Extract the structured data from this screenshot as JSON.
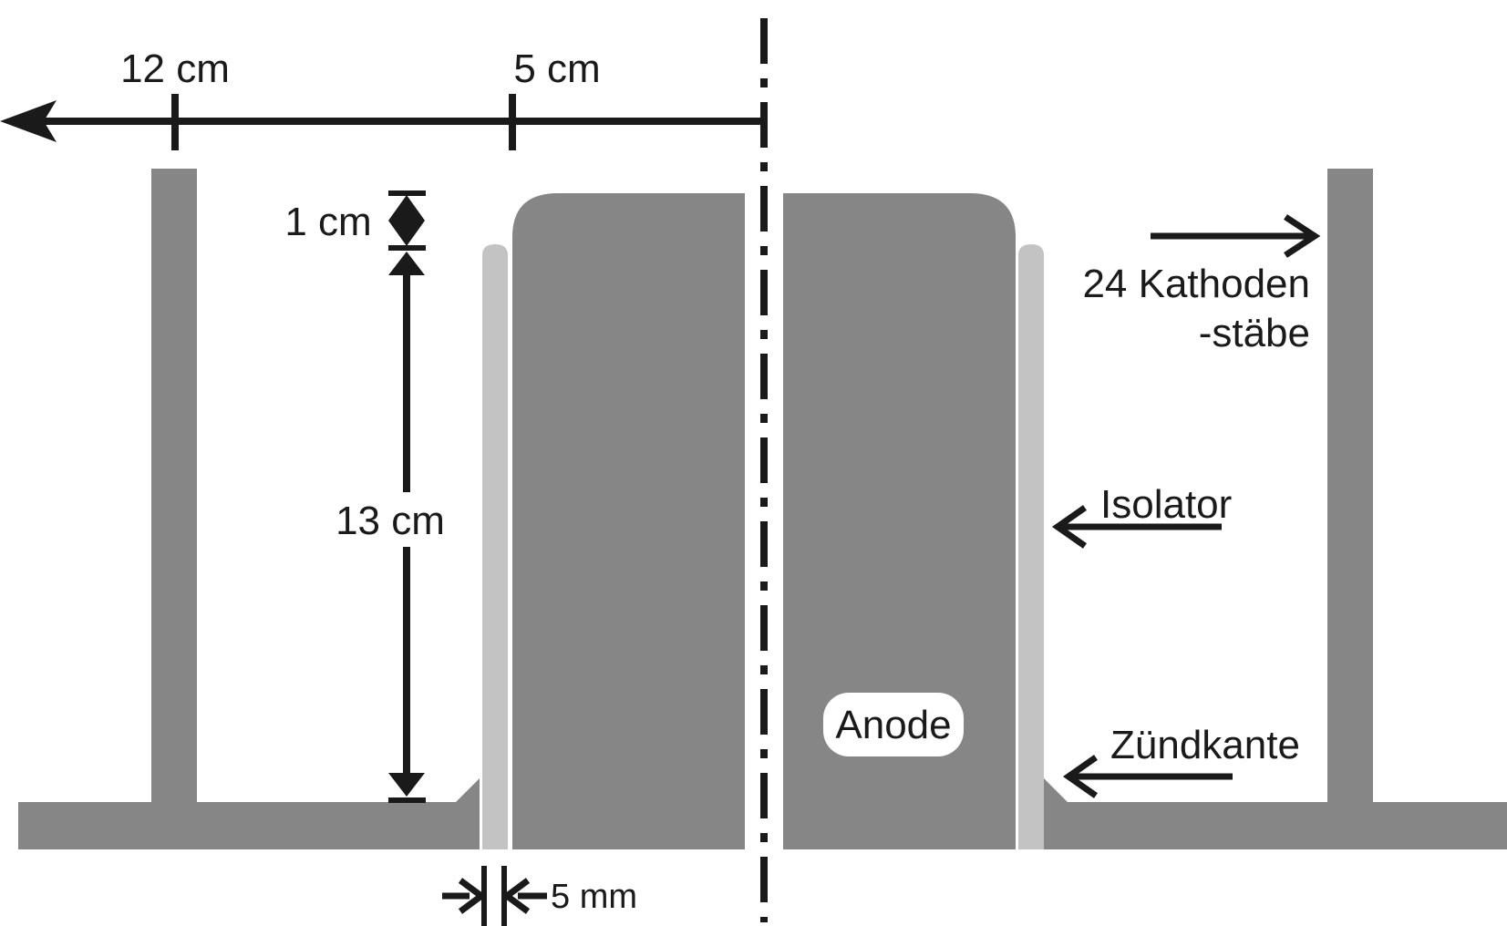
{
  "labels": {
    "dim_12cm": "12 cm",
    "dim_5cm": "5 cm",
    "dim_1cm": "1 cm",
    "dim_13cm": "13 cm",
    "dim_5mm": "5 mm",
    "cathode_line1": "24 Kathoden",
    "cathode_line2": "-stäbe",
    "insulator": "Isolator",
    "ignition_edge": "Zündkante",
    "anode": "Anode"
  },
  "colors": {
    "metal": "#868686",
    "insulator": "#c3c3c3",
    "ink": "#1a1a1a",
    "background": "#ffffff"
  }
}
